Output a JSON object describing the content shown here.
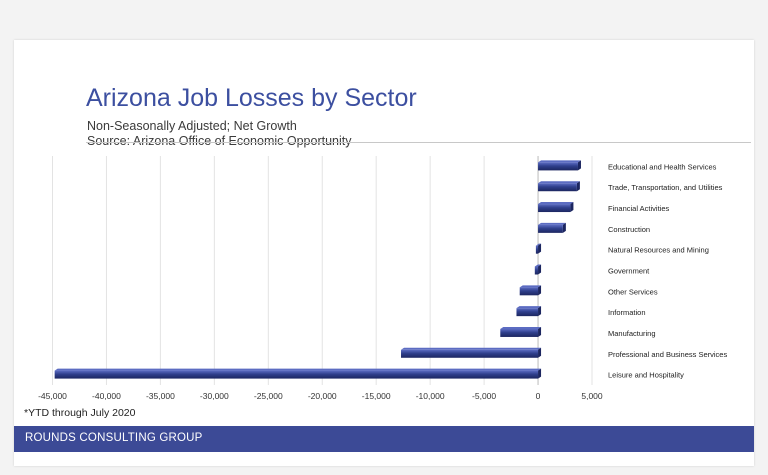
{
  "chart_data": {
    "type": "bar",
    "orientation": "horizontal",
    "title": "Arizona Job Losses by Sector",
    "subtitle_lines": [
      "Non-Seasonally Adjusted; Net Growth",
      "Source: Arizona Office of Economic Opportunity"
    ],
    "categories": [
      "Educational and Health Services",
      "Trade, Transportation, and Utilities",
      "Financial Activities",
      "Construction",
      "Natural Resources and Mining",
      "Government",
      "Other Services",
      "Information",
      "Manufacturing",
      "Professional and Business Services",
      "Leisure and Hospitality"
    ],
    "values": [
      3700,
      3600,
      3000,
      2300,
      -200,
      -300,
      -1700,
      -2000,
      -3500,
      -12700,
      -44800
    ],
    "xlim": [
      -45000,
      5000
    ],
    "xticks": [
      -45000,
      -40000,
      -35000,
      -30000,
      -25000,
      -20000,
      -15000,
      -10000,
      -5000,
      0,
      5000
    ],
    "xtick_labels": [
      "-45,000",
      "-40,000",
      "-35,000",
      "-30,000",
      "-25,000",
      "-20,000",
      "-15,000",
      "-10,000",
      "-5,000",
      "0",
      "5,000"
    ],
    "grid": true,
    "bar_color": "#2f3f8c",
    "bar_highlight": "#5c6cc2",
    "gridline_color": "#e3e3e3"
  },
  "footnote": "*YTD through July 2020",
  "footer": {
    "label": "ROUNDS CONSULTING GROUP",
    "color": "#3c4a96"
  }
}
